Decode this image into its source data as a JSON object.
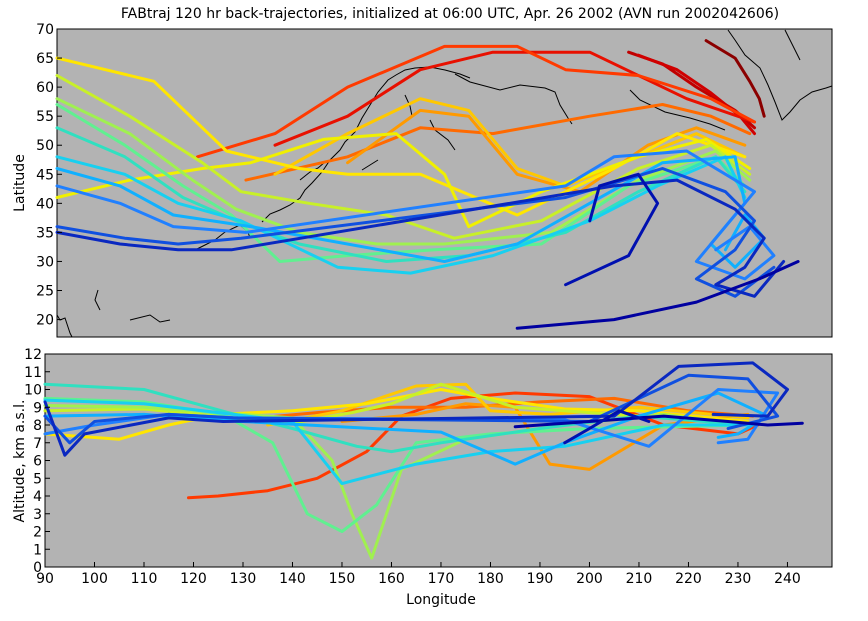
{
  "title": "FABtraj 120 hr back-trajectories, initialized at 06:00 UTC, Apr. 26 2002 (AVN run 2002042606)",
  "chart_data": [
    {
      "type": "line",
      "panel": "map",
      "xlabel": "",
      "ylabel": "Latitude",
      "xlim": [
        90,
        250
      ],
      "ylim": [
        17,
        70
      ],
      "yticks": [
        20,
        25,
        30,
        35,
        40,
        45,
        50,
        55,
        60,
        65,
        70
      ],
      "background": "#b3b3b3",
      "series": [
        {
          "color": "#c00000",
          "x": [
            208,
            215,
            222,
            230,
            234
          ],
          "y": [
            66,
            64,
            60,
            56,
            53
          ]
        },
        {
          "color": "#d00000",
          "x": [
            210,
            218,
            225,
            231,
            234
          ],
          "y": [
            65.5,
            63,
            59,
            55,
            52
          ]
        },
        {
          "color": "#8b0000",
          "x": [
            224,
            230,
            233,
            235,
            236
          ],
          "y": [
            68,
            65,
            61,
            58,
            55
          ]
        },
        {
          "color": "#e81000",
          "x": [
            135,
            150,
            165,
            180,
            200,
            220,
            234
          ],
          "y": [
            50,
            55,
            63,
            66,
            66,
            58,
            54
          ]
        },
        {
          "color": "#ff3a00",
          "x": [
            119,
            135,
            150,
            170,
            185,
            195,
            210,
            225,
            234
          ],
          "y": [
            48,
            52,
            60,
            67,
            67,
            63,
            62,
            58,
            54
          ]
        },
        {
          "color": "#ff6a00",
          "x": [
            129,
            150,
            165,
            180,
            200,
            215,
            225,
            233
          ],
          "y": [
            44,
            48,
            53,
            52,
            55,
            57,
            55,
            52
          ]
        },
        {
          "color": "#ff9a00",
          "x": [
            150,
            165,
            175,
            185,
            198,
            212,
            222,
            232
          ],
          "y": [
            47,
            56,
            55,
            45,
            42,
            50,
            53,
            50
          ]
        },
        {
          "color": "#ffc800",
          "x": [
            135,
            150,
            165,
            175,
            185,
            195,
            210,
            222,
            232
          ],
          "y": [
            45,
            52,
            58,
            56,
            46,
            43,
            48,
            52,
            48
          ]
        },
        {
          "color": "#ffe600",
          "x": [
            90,
            110,
            125,
            140,
            150,
            165,
            185,
            205,
            218,
            232
          ],
          "y": [
            65,
            61,
            49,
            46,
            45,
            45,
            38,
            46,
            52,
            48
          ]
        },
        {
          "color": "#f0f000",
          "x": [
            90,
            105,
            120,
            130,
            145,
            160,
            170,
            175,
            190,
            210,
            224,
            233
          ],
          "y": [
            41,
            44,
            46,
            47,
            51,
            52,
            45,
            36,
            42,
            48,
            51,
            46
          ]
        },
        {
          "color": "#c8f028",
          "x": [
            90,
            105,
            120,
            128,
            142,
            158,
            172,
            190,
            210,
            225,
            233
          ],
          "y": [
            62,
            55,
            47,
            42,
            40,
            38,
            34,
            37,
            46,
            50,
            45
          ]
        },
        {
          "color": "#a0f050",
          "x": [
            90,
            105,
            118,
            127,
            140,
            156,
            170,
            192,
            210,
            226,
            233
          ],
          "y": [
            58,
            52,
            44,
            39,
            35,
            33,
            33,
            35,
            44,
            49,
            44
          ]
        },
        {
          "color": "#60f090",
          "x": [
            90,
            104,
            116,
            126,
            136,
            150,
            168,
            190,
            208,
            226,
            232
          ],
          "y": [
            57,
            50,
            43,
            38,
            30,
            31,
            32,
            33,
            43,
            48,
            43
          ]
        },
        {
          "color": "#30e0c0",
          "x": [
            90,
            104,
            116,
            127,
            140,
            158,
            175,
            195,
            210,
            226,
            232
          ],
          "y": [
            53,
            48,
            41,
            37,
            33,
            30,
            31,
            35,
            42,
            48,
            42
          ]
        },
        {
          "color": "#18d0f0",
          "x": [
            90,
            104,
            115,
            128,
            148,
            163,
            180,
            200,
            214,
            228,
            232
          ],
          "y": [
            48,
            45,
            40,
            37,
            29,
            28,
            31,
            37,
            43,
            48,
            41
          ]
        },
        {
          "color": "#10b0ff",
          "x": [
            90,
            103,
            114,
            130,
            170,
            185,
            200,
            215,
            230,
            232,
            225,
            230,
            236,
            232,
            228
          ],
          "y": [
            46,
            43,
            38,
            36,
            30,
            33,
            40,
            47,
            48,
            40,
            33,
            29,
            34,
            38,
            32
          ]
        },
        {
          "color": "#2080ff",
          "x": [
            90,
            103,
            114,
            129,
            195,
            205,
            220,
            234,
            228,
            222,
            232,
            238,
            233,
            226
          ],
          "y": [
            43,
            40,
            36,
            35,
            43,
            48,
            49,
            42,
            36,
            30,
            27,
            31,
            36,
            32
          ]
        },
        {
          "color": "#1050e0",
          "x": [
            90,
            104,
            115,
            128,
            195,
            215,
            228,
            234,
            230,
            222,
            230,
            238
          ],
          "y": [
            36,
            34,
            33,
            34,
            41,
            46,
            42,
            37,
            32,
            27,
            24,
            29
          ]
        },
        {
          "color": "#0a28c0",
          "x": [
            90,
            103,
            115,
            126,
            205,
            218,
            230,
            236,
            232,
            226,
            234,
            240
          ],
          "y": [
            35,
            33,
            32,
            32,
            43,
            44,
            39,
            34,
            29,
            26,
            24,
            30
          ]
        },
        {
          "color": "#0000a0",
          "x": [
            185,
            205,
            222,
            235,
            243
          ],
          "y": [
            18.5,
            20,
            23,
            27,
            30
          ]
        },
        {
          "color": "#0010b0",
          "x": [
            195,
            208,
            214,
            210,
            202,
            200
          ],
          "y": [
            26,
            31,
            40,
            45,
            43,
            37
          ]
        }
      ]
    },
    {
      "type": "line",
      "panel": "altitude",
      "xlabel": "Longitude",
      "ylabel": "Altitude, km a.s.l.",
      "xlim": [
        90,
        249
      ],
      "ylim": [
        0,
        12
      ],
      "xticks": [
        90,
        100,
        110,
        120,
        130,
        140,
        150,
        160,
        170,
        180,
        190,
        200,
        210,
        220,
        230,
        240
      ],
      "yticks": [
        0,
        1,
        2,
        3,
        4,
        5,
        6,
        7,
        8,
        9,
        10,
        11,
        12
      ],
      "background": "#b3b3b3",
      "series": [
        {
          "color": "#ff3a00",
          "x": [
            119,
            125,
            135,
            145,
            155,
            162,
            172,
            185,
            200,
            215,
            230,
            234
          ],
          "y": [
            3.9,
            4.0,
            4.3,
            5.0,
            6.5,
            8.5,
            9.5,
            9.8,
            9.6,
            8.0,
            7.5,
            8.0
          ]
        },
        {
          "color": "#ff6a00",
          "x": [
            129,
            145,
            160,
            175,
            190,
            205,
            220,
            233
          ],
          "y": [
            8.3,
            8.7,
            9.0,
            9.0,
            9.3,
            9.5,
            8.8,
            8.5
          ]
        },
        {
          "color": "#ff9a00",
          "x": [
            150,
            165,
            175,
            185,
            192,
            200,
            215,
            232
          ],
          "y": [
            8.2,
            8.6,
            9.2,
            9.0,
            5.8,
            5.5,
            8.0,
            8.6
          ]
        },
        {
          "color": "#ffc800",
          "x": [
            135,
            150,
            165,
            175,
            180,
            192,
            210,
            232
          ],
          "y": [
            8.0,
            8.8,
            10.2,
            10.3,
            8.8,
            8.6,
            9.0,
            8.4
          ]
        },
        {
          "color": "#ffe600",
          "x": [
            90,
            105,
            115,
            125,
            140,
            155,
            170,
            180,
            195,
            210,
            232
          ],
          "y": [
            7.5,
            7.2,
            8.0,
            8.6,
            8.8,
            9.2,
            10.0,
            9.5,
            8.9,
            8.8,
            8.2
          ]
        },
        {
          "color": "#c8f028",
          "x": [
            90,
            110,
            125,
            140,
            152,
            160,
            170,
            185,
            205,
            232
          ],
          "y": [
            8.8,
            8.9,
            8.5,
            8.1,
            8.7,
            9.2,
            10.3,
            9.0,
            8.6,
            8.1
          ]
        },
        {
          "color": "#a0f050",
          "x": [
            90,
            110,
            125,
            140,
            148,
            152,
            156,
            162,
            175,
            195,
            215,
            232
          ],
          "y": [
            9.1,
            9.0,
            8.7,
            8.4,
            6.0,
            3.0,
            0.5,
            5.5,
            7.2,
            8.0,
            8.6,
            8.0
          ]
        },
        {
          "color": "#60f090",
          "x": [
            90,
            110,
            126,
            136,
            143,
            150,
            157,
            165,
            180,
            200,
            232
          ],
          "y": [
            9.5,
            9.3,
            8.6,
            7.0,
            3.0,
            2.0,
            3.5,
            7.0,
            7.5,
            7.8,
            8.0
          ]
        },
        {
          "color": "#30e0c0",
          "x": [
            90,
            110,
            127,
            140,
            153,
            160,
            170,
            190,
            210,
            232
          ],
          "y": [
            10.3,
            10.0,
            8.7,
            7.8,
            6.8,
            6.5,
            7.0,
            7.8,
            8.5,
            8.0
          ]
        },
        {
          "color": "#18d0f0",
          "x": [
            90,
            110,
            128,
            140,
            150,
            165,
            180,
            195,
            215,
            232
          ],
          "y": [
            9.4,
            9.2,
            8.6,
            8.2,
            4.7,
            5.8,
            6.5,
            6.8,
            8.0,
            8.0
          ]
        },
        {
          "color": "#10b0ff",
          "x": [
            90,
            110,
            130,
            170,
            185,
            195,
            210,
            226,
            236,
            230,
            226
          ],
          "y": [
            8.5,
            8.6,
            8.2,
            7.6,
            5.8,
            7.0,
            8.5,
            9.8,
            8.5,
            7.5,
            7.3
          ]
        },
        {
          "color": "#2080ff",
          "x": [
            90,
            100,
            115,
            129,
            195,
            212,
            226,
            238,
            232,
            226
          ],
          "y": [
            7.5,
            8.0,
            8.6,
            8.4,
            8.3,
            6.8,
            10.0,
            9.8,
            7.2,
            7.0
          ]
        },
        {
          "color": "#1050e0",
          "x": [
            90,
            95,
            100,
            115,
            128,
            200,
            220,
            232,
            238,
            228
          ],
          "y": [
            8.5,
            7.0,
            8.2,
            8.6,
            8.4,
            8.2,
            10.8,
            10.6,
            8.5,
            7.8
          ]
        },
        {
          "color": "#0a28c0",
          "x": [
            90,
            94,
            98,
            115,
            126,
            205,
            218,
            233,
            240,
            236,
            225
          ],
          "y": [
            9.3,
            6.3,
            7.5,
            8.4,
            8.2,
            8.5,
            11.3,
            11.5,
            10.0,
            8.5,
            8.6
          ]
        },
        {
          "color": "#0000a0",
          "x": [
            185,
            200,
            215,
            228,
            236,
            243
          ],
          "y": [
            7.9,
            8.2,
            8.5,
            8.2,
            8.0,
            8.1
          ]
        },
        {
          "color": "#0010b0",
          "x": [
            195,
            200,
            206,
            212
          ],
          "y": [
            7.0,
            7.8,
            8.8,
            8.2
          ]
        }
      ]
    }
  ]
}
